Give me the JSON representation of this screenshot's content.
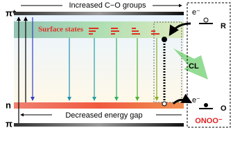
{
  "diagram": {
    "top_label": "Increased C−O groups",
    "bottom_label": "Decreased energy gap",
    "levels": {
      "pi_star": "π*",
      "n": "n",
      "pi": "π"
    },
    "surface_states": "Surface states",
    "cl": "CL",
    "side": {
      "electron_top": "e⁻",
      "r_label": "R",
      "electron_bottom": "e⁻",
      "o_label": "O",
      "species": "ONOO⁻"
    }
  }
}
